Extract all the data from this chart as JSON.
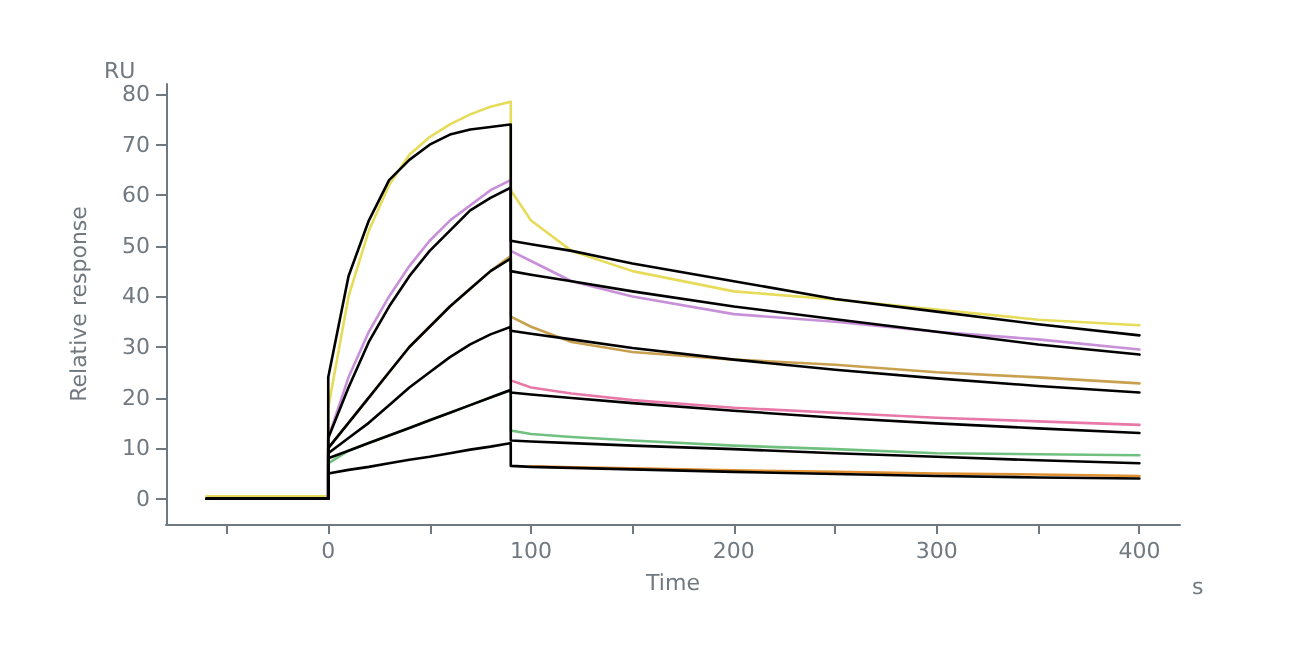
{
  "chart_data": {
    "type": "line",
    "xlabel": "Time",
    "ylabel": "Relative response",
    "annotations": [
      "RU",
      "s"
    ],
    "x": [
      -60,
      0,
      0,
      10,
      20,
      30,
      40,
      50,
      60,
      70,
      80,
      90,
      90,
      100,
      120,
      150,
      200,
      250,
      300,
      350,
      400
    ],
    "xlim": [
      -80,
      420
    ],
    "xticks": [
      {
        "value": -50,
        "label": null
      },
      0,
      {
        "value": 50,
        "label": null
      },
      100,
      {
        "value": 150,
        "label": null
      },
      200,
      {
        "value": 250,
        "label": null
      },
      300,
      {
        "value": 350,
        "label": null
      },
      400
    ],
    "ylim": [
      -5,
      82
    ],
    "yticks": [
      0,
      10,
      20,
      30,
      40,
      50,
      60,
      70,
      80
    ],
    "grid": false,
    "marker": "none",
    "line_style": "solid",
    "series": [
      {
        "color": "#e6dc5a",
        "values": [
          0.5,
          0.5,
          18,
          40,
          53,
          62,
          68,
          71.5,
          74,
          76,
          77.5,
          78.5,
          61,
          55,
          49,
          45,
          41,
          39.4,
          37.4,
          35.4,
          34.3
        ]
      },
      {
        "color": "#c890d8",
        "values": [
          0,
          0,
          12,
          24,
          33,
          40,
          46,
          51,
          55,
          58,
          61,
          63,
          49,
          47,
          43,
          40,
          36.5,
          35,
          33,
          31.5,
          29.5
        ]
      },
      {
        "color": "#c8a050",
        "values": [
          0,
          0,
          10,
          15,
          20,
          25,
          30,
          34,
          38,
          41.5,
          45,
          48,
          36,
          34,
          31,
          29,
          27.5,
          26.5,
          25,
          24,
          22.8
        ]
      },
      {
        "color": "#e878a8",
        "values": [
          null,
          null,
          null,
          null,
          null,
          null,
          null,
          null,
          null,
          null,
          null,
          34,
          23.4,
          22,
          20.8,
          19.5,
          18,
          17,
          16,
          15.3,
          14.6
        ]
      },
      {
        "color": "#70c080",
        "values": [
          0,
          0,
          7,
          9.5,
          11,
          12.5,
          14,
          15.5,
          17,
          18.5,
          20,
          21.5,
          13.5,
          12.8,
          12.2,
          11.5,
          10.5,
          9.8,
          9,
          8.8,
          8.6
        ]
      },
      {
        "color": "#e09030",
        "values": [
          null,
          null,
          null,
          null,
          null,
          null,
          null,
          null,
          null,
          null,
          null,
          null,
          null,
          6.4,
          6.2,
          6,
          5.6,
          5.3,
          5,
          4.8,
          4.5
        ]
      },
      {
        "color": "#000000",
        "values": [
          0,
          0,
          24,
          44,
          55,
          63,
          67,
          70,
          72,
          73,
          73.5,
          74,
          51,
          50.3,
          49,
          46.5,
          43,
          39.5,
          37,
          34.5,
          32.3
        ]
      },
      {
        "color": "#000000",
        "values": [
          0,
          0,
          12,
          22,
          31,
          38,
          44,
          49,
          53,
          57,
          59.5,
          61.5,
          45,
          44.3,
          43,
          41,
          38,
          35.5,
          33,
          30.5,
          28.5
        ]
      },
      {
        "color": "#000000",
        "values": [
          0,
          0,
          10,
          15,
          20,
          25,
          30,
          34,
          38,
          41.5,
          45,
          47.5,
          33.2,
          32.6,
          31.5,
          29.8,
          27.5,
          25.5,
          23.8,
          22.3,
          21
        ]
      },
      {
        "color": "#000000",
        "values": [
          0,
          0,
          9,
          12,
          15,
          18.5,
          22,
          25,
          28,
          30.5,
          32.5,
          34,
          21,
          20.6,
          19.9,
          18.9,
          17.4,
          16,
          14.9,
          13.9,
          13
        ]
      },
      {
        "color": "#000000",
        "values": [
          0,
          0,
          8,
          9.5,
          11,
          12.5,
          14,
          15.5,
          17,
          18.5,
          20,
          21.5,
          11.5,
          11.3,
          11,
          10.5,
          9.8,
          9,
          8.3,
          7.6,
          7
        ]
      },
      {
        "color": "#000000",
        "values": [
          0,
          0,
          5,
          5.7,
          6.3,
          7,
          7.7,
          8.3,
          9,
          9.7,
          10.3,
          11,
          6.5,
          6.3,
          6.1,
          5.8,
          5.3,
          4.9,
          4.5,
          4.2,
          4
        ]
      }
    ]
  }
}
